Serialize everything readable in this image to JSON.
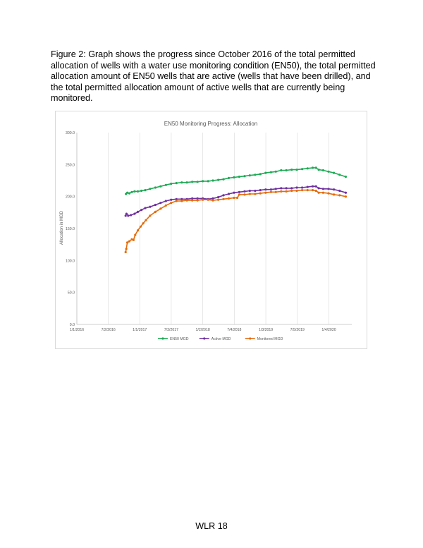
{
  "caption": "Figure 2: Graph shows the progress since October 2016 of the total permitted allocation of wells with a water use monitoring condition (EN50), the total permitted allocation amount of EN50 wells that are active (wells that have been drilled), and the total permitted allocation amount of active wells that are currently being monitored.",
  "footer": "WLR 18",
  "chart_data": {
    "type": "line",
    "title": "EN50 Monitoring Progress: Allocation",
    "xlabel": "",
    "ylabel": "Allocation in MGD",
    "ylim": [
      0,
      300
    ],
    "xlim": [
      "2016-01-01",
      "2020-05-15"
    ],
    "y_ticks": [
      "0.0",
      "50.0",
      "100.0",
      "150.0",
      "200.0",
      "250.0",
      "300.0"
    ],
    "x_ticks": [
      {
        "date": "2016-01-01",
        "label": "1/1/2016"
      },
      {
        "date": "2016-07-02",
        "label": "7/2/2016"
      },
      {
        "date": "2016-12-31",
        "label": "1/1/2017"
      },
      {
        "date": "2017-07-02",
        "label": "7/3/2017"
      },
      {
        "date": "2018-01-01",
        "label": "1/2/2018"
      },
      {
        "date": "2018-07-03",
        "label": "7/4/2018"
      },
      {
        "date": "2019-01-02",
        "label": "1/3/2019"
      },
      {
        "date": "2019-07-04",
        "label": "7/5/2019"
      },
      {
        "date": "2020-01-03",
        "label": "1/4/2020"
      }
    ],
    "grid": "vertical",
    "legend": "bottom",
    "series": [
      {
        "name": "EN50 MGD",
        "color": "#1faa55",
        "points": [
          [
            "2016-10-12",
            204
          ],
          [
            "2016-10-20",
            206
          ],
          [
            "2016-11-01",
            205
          ],
          [
            "2016-11-15",
            207
          ],
          [
            "2016-12-01",
            208
          ],
          [
            "2016-12-20",
            208
          ],
          [
            "2017-01-10",
            209
          ],
          [
            "2017-02-01",
            210
          ],
          [
            "2017-03-01",
            212
          ],
          [
            "2017-04-01",
            214
          ],
          [
            "2017-05-01",
            216
          ],
          [
            "2017-06-01",
            218
          ],
          [
            "2017-07-01",
            220
          ],
          [
            "2017-08-01",
            221
          ],
          [
            "2017-09-01",
            222
          ],
          [
            "2017-10-01",
            222
          ],
          [
            "2017-11-01",
            223
          ],
          [
            "2017-12-01",
            223
          ],
          [
            "2018-01-01",
            224
          ],
          [
            "2018-02-01",
            224
          ],
          [
            "2018-03-01",
            225
          ],
          [
            "2018-04-01",
            226
          ],
          [
            "2018-05-01",
            227
          ],
          [
            "2018-06-01",
            229
          ],
          [
            "2018-07-01",
            230
          ],
          [
            "2018-08-01",
            231
          ],
          [
            "2018-09-01",
            232
          ],
          [
            "2018-10-01",
            233
          ],
          [
            "2018-11-01",
            234
          ],
          [
            "2018-12-01",
            235
          ],
          [
            "2019-01-01",
            237
          ],
          [
            "2019-02-01",
            238
          ],
          [
            "2019-03-01",
            239
          ],
          [
            "2019-04-01",
            241
          ],
          [
            "2019-05-01",
            241
          ],
          [
            "2019-06-01",
            242
          ],
          [
            "2019-07-01",
            242
          ],
          [
            "2019-08-01",
            243
          ],
          [
            "2019-09-01",
            244
          ],
          [
            "2019-10-01",
            245
          ],
          [
            "2019-10-20",
            245
          ],
          [
            "2019-11-05",
            242
          ],
          [
            "2019-12-01",
            241
          ],
          [
            "2020-01-01",
            239
          ],
          [
            "2020-02-01",
            237
          ],
          [
            "2020-03-05",
            234
          ],
          [
            "2020-04-10",
            231
          ]
        ]
      },
      {
        "name": "Active MGD",
        "color": "#7030a0",
        "points": [
          [
            "2016-10-10",
            170
          ],
          [
            "2016-10-15",
            173
          ],
          [
            "2016-10-25",
            170
          ],
          [
            "2016-11-10",
            171
          ],
          [
            "2016-12-01",
            173
          ],
          [
            "2016-12-20",
            176
          ],
          [
            "2017-01-10",
            179
          ],
          [
            "2017-02-01",
            182
          ],
          [
            "2017-03-01",
            184
          ],
          [
            "2017-04-01",
            187
          ],
          [
            "2017-05-01",
            190
          ],
          [
            "2017-06-01",
            193
          ],
          [
            "2017-07-01",
            195
          ],
          [
            "2017-08-01",
            196
          ],
          [
            "2017-09-01",
            196
          ],
          [
            "2017-10-01",
            196
          ],
          [
            "2017-11-01",
            197
          ],
          [
            "2017-12-01",
            197
          ],
          [
            "2018-01-01",
            197
          ],
          [
            "2018-02-01",
            196
          ],
          [
            "2018-03-01",
            197
          ],
          [
            "2018-04-01",
            199
          ],
          [
            "2018-05-01",
            202
          ],
          [
            "2018-06-01",
            204
          ],
          [
            "2018-07-01",
            206
          ],
          [
            "2018-08-01",
            207
          ],
          [
            "2018-09-01",
            208
          ],
          [
            "2018-10-01",
            209
          ],
          [
            "2018-11-01",
            209
          ],
          [
            "2018-12-01",
            210
          ],
          [
            "2019-01-01",
            211
          ],
          [
            "2019-02-01",
            211
          ],
          [
            "2019-03-01",
            212
          ],
          [
            "2019-04-01",
            213
          ],
          [
            "2019-05-01",
            213
          ],
          [
            "2019-06-01",
            213
          ],
          [
            "2019-07-01",
            214
          ],
          [
            "2019-08-01",
            214
          ],
          [
            "2019-09-01",
            215
          ],
          [
            "2019-10-01",
            216
          ],
          [
            "2019-10-20",
            216
          ],
          [
            "2019-11-05",
            213
          ],
          [
            "2019-12-01",
            212
          ],
          [
            "2020-01-01",
            212
          ],
          [
            "2020-02-01",
            211
          ],
          [
            "2020-03-05",
            209
          ],
          [
            "2020-04-10",
            206
          ]
        ]
      },
      {
        "name": "Monitored MGD",
        "color": "#e46c0a",
        "points": [
          [
            "2016-10-10",
            113
          ],
          [
            "2016-10-14",
            118
          ],
          [
            "2016-10-20",
            128
          ],
          [
            "2016-11-01",
            130
          ],
          [
            "2016-11-15",
            133
          ],
          [
            "2016-11-25",
            132
          ],
          [
            "2016-12-05",
            140
          ],
          [
            "2016-12-20",
            147
          ],
          [
            "2017-01-05",
            153
          ],
          [
            "2017-01-20",
            158
          ],
          [
            "2017-02-05",
            163
          ],
          [
            "2017-03-01",
            170
          ],
          [
            "2017-04-01",
            176
          ],
          [
            "2017-05-01",
            181
          ],
          [
            "2017-06-01",
            186
          ],
          [
            "2017-07-01",
            190
          ],
          [
            "2017-08-01",
            193
          ],
          [
            "2017-09-01",
            193
          ],
          [
            "2017-10-01",
            194
          ],
          [
            "2017-11-01",
            194
          ],
          [
            "2017-12-01",
            194
          ],
          [
            "2018-01-01",
            195
          ],
          [
            "2018-02-01",
            195
          ],
          [
            "2018-03-01",
            194
          ],
          [
            "2018-04-01",
            195
          ],
          [
            "2018-05-01",
            196
          ],
          [
            "2018-06-01",
            197
          ],
          [
            "2018-07-01",
            198
          ],
          [
            "2018-07-20",
            198
          ],
          [
            "2018-08-01",
            203
          ],
          [
            "2018-09-01",
            203
          ],
          [
            "2018-10-01",
            204
          ],
          [
            "2018-11-01",
            204
          ],
          [
            "2018-12-01",
            205
          ],
          [
            "2019-01-01",
            206
          ],
          [
            "2019-02-01",
            207
          ],
          [
            "2019-03-01",
            207
          ],
          [
            "2019-04-01",
            208
          ],
          [
            "2019-05-01",
            208
          ],
          [
            "2019-06-01",
            209
          ],
          [
            "2019-07-01",
            209
          ],
          [
            "2019-08-01",
            210
          ],
          [
            "2019-09-01",
            210
          ],
          [
            "2019-10-01",
            210
          ],
          [
            "2019-10-20",
            209
          ],
          [
            "2019-11-05",
            206
          ],
          [
            "2019-12-01",
            206
          ],
          [
            "2020-01-01",
            205
          ],
          [
            "2020-02-01",
            203
          ],
          [
            "2020-03-05",
            202
          ],
          [
            "2020-04-10",
            200
          ]
        ]
      }
    ]
  }
}
